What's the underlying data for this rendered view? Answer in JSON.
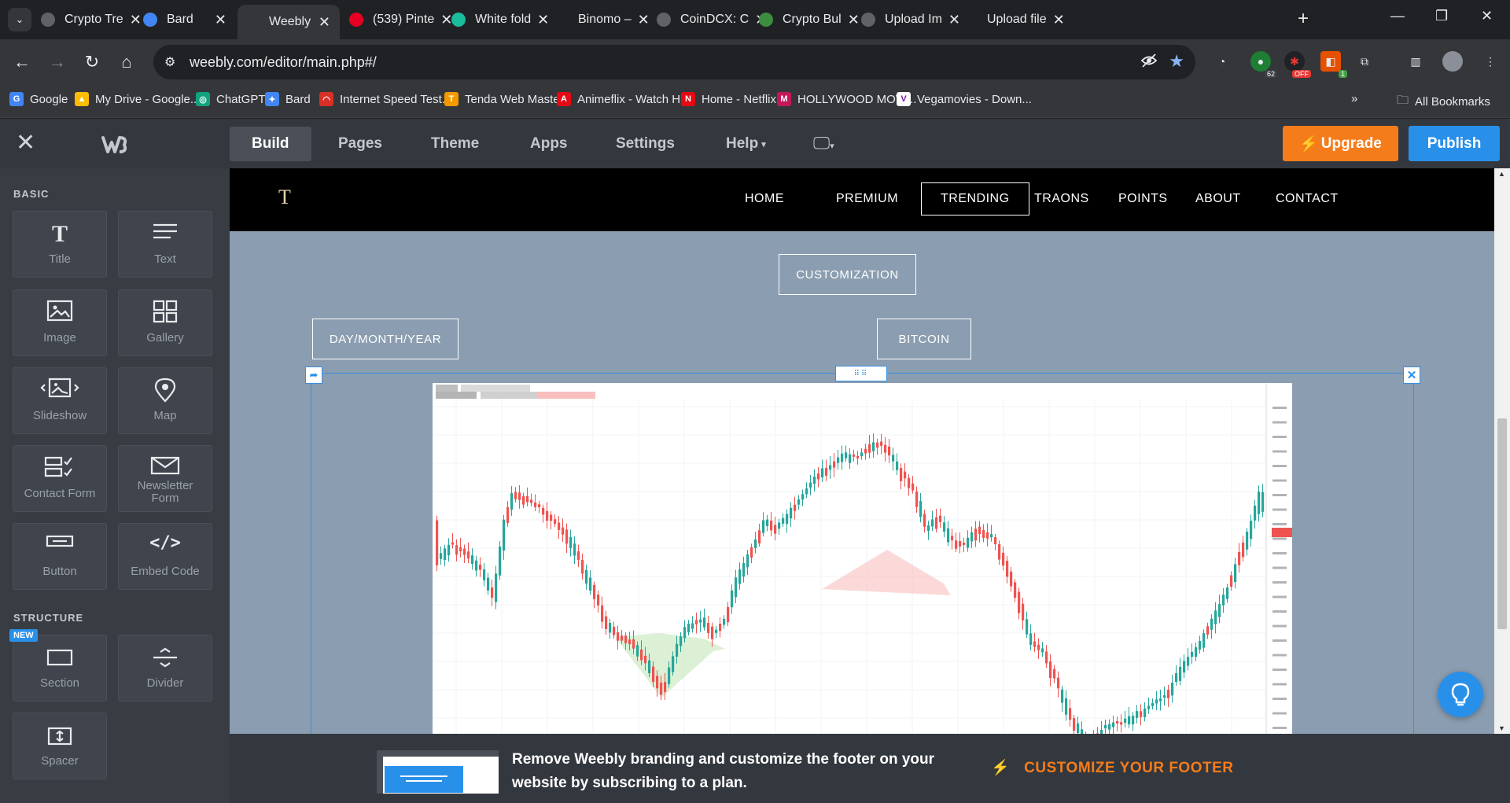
{
  "browser": {
    "tabs": [
      {
        "title": "Crypto Tre",
        "favicon_color": "#5f6368"
      },
      {
        "title": "Bard",
        "favicon_color": "#4285f4"
      },
      {
        "title": "Weebly",
        "favicon_color": "#35363a"
      },
      {
        "title": "(539) Pinte",
        "favicon_color": "#e60023"
      },
      {
        "title": "White fold",
        "favicon_color": "#1abc9c"
      },
      {
        "title": "Binomo – ",
        "favicon_color": "#202124"
      },
      {
        "title": "CoinDCX: C",
        "favicon_color": "#5f6368"
      },
      {
        "title": "Crypto Bul",
        "favicon_color": "#3c8d40"
      },
      {
        "title": "Upload Im",
        "favicon_color": "#5f6368"
      },
      {
        "title": "Upload file",
        "favicon_color": "#202124"
      }
    ],
    "address": {
      "url": "weebly.com/editor/main.php#/"
    },
    "extensions": {
      "ext2_badge": "62",
      "ext3_badge": "OFF",
      "ext4_badge": "1"
    },
    "bookmarks": [
      {
        "label": "Google",
        "color": "#4285f4",
        "icon": "G"
      },
      {
        "label": "My Drive - Google...",
        "color": "#fbbc04",
        "icon": "▲"
      },
      {
        "label": "ChatGPT",
        "color": "#10a37f",
        "icon": "◎"
      },
      {
        "label": "Bard",
        "color": "#4285f4",
        "icon": "✦"
      },
      {
        "label": "Internet Speed Test...",
        "color": "#d93025",
        "icon": "◠"
      },
      {
        "label": "Tenda Web Master",
        "color": "#f29900",
        "icon": "T"
      },
      {
        "label": "Animeflix - Watch H...",
        "color": "#e50914",
        "icon": "A"
      },
      {
        "label": "Home - Netflix",
        "color": "#e50914",
        "icon": "N"
      },
      {
        "label": "HOLLYWOOD MOVI...",
        "color": "#c2185b",
        "icon": "M"
      },
      {
        "label": "Vegamovies - Down...",
        "color": "#ffffff",
        "icon": "V"
      }
    ],
    "all_bookmarks": "All Bookmarks"
  },
  "editor": {
    "nav": [
      "Build",
      "Pages",
      "Theme",
      "Apps",
      "Settings",
      "Help"
    ],
    "upgrade_label": "Upgrade",
    "publish_label": "Publish"
  },
  "sidebar": {
    "basic_title": "BASIC",
    "structure_title": "STRUCTURE",
    "new_badge": "NEW",
    "basic_items": [
      {
        "label": "Title",
        "icon": "T"
      },
      {
        "label": "Text",
        "icon": "≡"
      },
      {
        "label": "Image",
        "icon": "image"
      },
      {
        "label": "Gallery",
        "icon": "gallery"
      },
      {
        "label": "Slideshow",
        "icon": "slideshow"
      },
      {
        "label": "Map",
        "icon": "map-pin"
      },
      {
        "label": "Contact Form",
        "icon": "contact"
      },
      {
        "label": "Newsletter Form",
        "icon": "envelope"
      },
      {
        "label": "Button",
        "icon": "button"
      },
      {
        "label": "Embed Code",
        "icon": "</>"
      }
    ],
    "structure_items": [
      {
        "label": "Section",
        "icon": "section"
      },
      {
        "label": "Divider",
        "icon": "divider"
      },
      {
        "label": "Spacer",
        "icon": "spacer"
      }
    ]
  },
  "site": {
    "logo": "T",
    "nav": [
      "HOME",
      "PREMIUM",
      "TRENDING",
      "TRAONS",
      "POINTS",
      "ABOUT",
      "CONTACT"
    ],
    "buttons": {
      "customization": "CUSTOMIZATION",
      "date": "DAY/MONTH/YEAR",
      "bitcoin": "BITCOIN"
    }
  },
  "promo": {
    "message": "Remove Weebly branding and customize the footer on your website by subscribing to a plan.",
    "cta": "CUSTOMIZE YOUR FOOTER"
  },
  "colors": {
    "accent_orange": "#f57c1a",
    "accent_blue": "#2990ea",
    "canvas_bg": "#8b9db0",
    "candle_up": "#26a69a",
    "candle_down": "#ef5350"
  }
}
